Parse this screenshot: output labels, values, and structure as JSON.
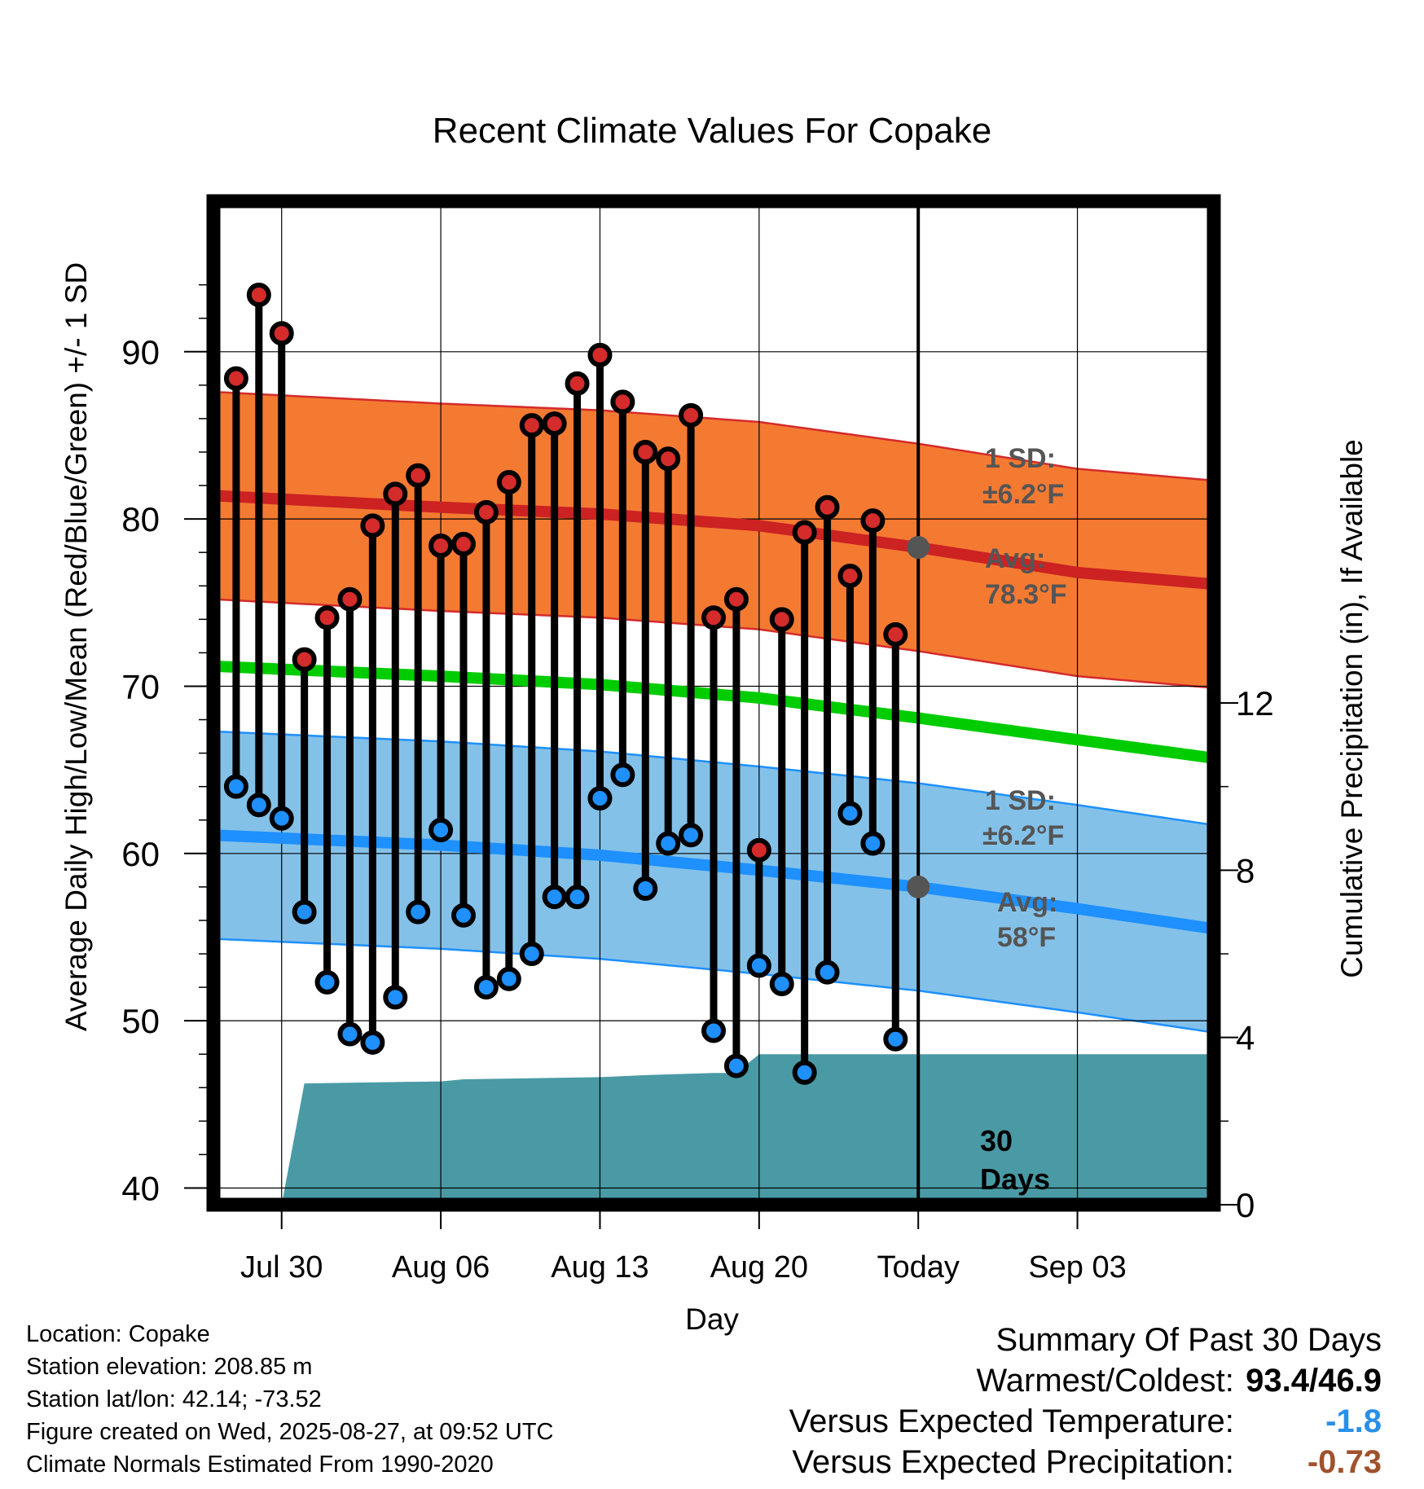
{
  "chart_data": {
    "type": "line",
    "title": "Recent Climate Values For Copake",
    "xlabel": "Day",
    "ylabel": "Average Daily High/Low/Mean (Red/Blue/Green) +/- 1 SD",
    "y2label": "Cumulative Precipitation (in), If Available",
    "xlim_days_from_jul30": [
      -3,
      41
    ],
    "ylim": [
      39,
      99
    ],
    "y2lim": [
      0,
      24
    ],
    "x_ticks": [
      {
        "day": 0,
        "label": "Jul 30"
      },
      {
        "day": 7,
        "label": "Aug 06"
      },
      {
        "day": 14,
        "label": "Aug 13"
      },
      {
        "day": 21,
        "label": "Aug 20"
      },
      {
        "day": 28,
        "label": "Today"
      },
      {
        "day": 35,
        "label": "Sep 03"
      }
    ],
    "y_ticks": [
      40,
      50,
      60,
      70,
      80,
      90
    ],
    "y2_ticks": [
      0,
      4,
      8,
      12
    ],
    "grid": true,
    "today_marker": {
      "day": 28,
      "label_line1": "30",
      "label_line2": "Days"
    },
    "daily_highs": [
      88.4,
      93.4,
      91.1,
      71.6,
      74.1,
      75.2,
      79.6,
      81.5,
      82.6,
      78.4,
      78.5,
      80.4,
      82.2,
      85.6,
      85.7,
      88.1,
      89.8,
      87.0,
      84.0,
      83.6,
      86.2,
      74.1,
      75.2,
      60.2,
      74.0,
      79.2,
      80.7,
      76.6,
      79.9,
      73.1
    ],
    "daily_lows": [
      64.0,
      62.9,
      62.1,
      56.5,
      52.3,
      49.2,
      48.7,
      51.4,
      56.5,
      61.4,
      56.3,
      52.0,
      52.5,
      54.0,
      57.4,
      57.4,
      63.3,
      64.7,
      57.9,
      60.6,
      61.1,
      49.4,
      47.3,
      53.3,
      52.2,
      46.9,
      52.9,
      62.4,
      60.6,
      48.9
    ],
    "series": [
      {
        "name": "Normal High",
        "color": "#cc2222",
        "points": [
          [
            -3,
            81.4
          ],
          [
            7,
            80.7
          ],
          [
            14,
            80.3
          ],
          [
            21,
            79.6
          ],
          [
            28,
            78.3
          ],
          [
            35,
            76.8
          ],
          [
            41,
            76.1
          ]
        ]
      },
      {
        "name": "Normal Mean",
        "color": "#00cc00",
        "points": [
          [
            -3,
            71.2
          ],
          [
            7,
            70.6
          ],
          [
            14,
            70.1
          ],
          [
            21,
            69.3
          ],
          [
            28,
            68.1
          ],
          [
            35,
            66.8
          ],
          [
            41,
            65.7
          ]
        ]
      },
      {
        "name": "Normal Low",
        "color": "#1e90ff",
        "points": [
          [
            -3,
            61.1
          ],
          [
            7,
            60.5
          ],
          [
            14,
            59.9
          ],
          [
            21,
            59.0
          ],
          [
            28,
            58.0
          ],
          [
            35,
            56.7
          ],
          [
            41,
            55.5
          ]
        ]
      },
      {
        "name": "Cumulative Precipitation",
        "color": "#4a9aa5",
        "points": [
          [
            0,
            0
          ],
          [
            1,
            2.9
          ],
          [
            7,
            2.95
          ],
          [
            8,
            3.0
          ],
          [
            14,
            3.05
          ],
          [
            16,
            3.1
          ],
          [
            19,
            3.15
          ],
          [
            20,
            3.15
          ],
          [
            21,
            3.6
          ],
          [
            41,
            3.6
          ]
        ]
      }
    ],
    "sd_bands": [
      {
        "center": "Normal High",
        "sd": 6.2,
        "color": "#f47a32"
      },
      {
        "center": "Normal Low",
        "sd": 6.2,
        "color": "#84c1e8"
      }
    ],
    "annotations": {
      "high_sd_1": "1 SD:",
      "high_sd_2": "±6.2°F",
      "high_avg_1": "Avg:",
      "high_avg_2": "78.3°F",
      "low_sd_1": "1 SD:",
      "low_sd_2": "±6.2°F",
      "low_avg_1": "Avg:",
      "low_avg_2": "58°F"
    }
  },
  "info": {
    "location": "Location: Copake",
    "elevation": "Station elevation: 208.85 m",
    "latlon": "Station lat/lon: 42.14; -73.52",
    "created": "Figure created on Wed, 2025-08-27, at 09:52 UTC",
    "normals": "Climate Normals Estimated From 1990-2020"
  },
  "summary": {
    "heading": "Summary Of Past 30 Days",
    "warm_cold_label": "Warmest/Coldest:",
    "warm_cold_value": "93.4/46.9",
    "temp_label": "Versus Expected Temperature:",
    "temp_value": "-1.8",
    "temp_color": "#2a8fe8",
    "precip_label": "Versus Expected Precipitation:",
    "precip_value": "-0.73",
    "precip_color": "#a0522d"
  }
}
